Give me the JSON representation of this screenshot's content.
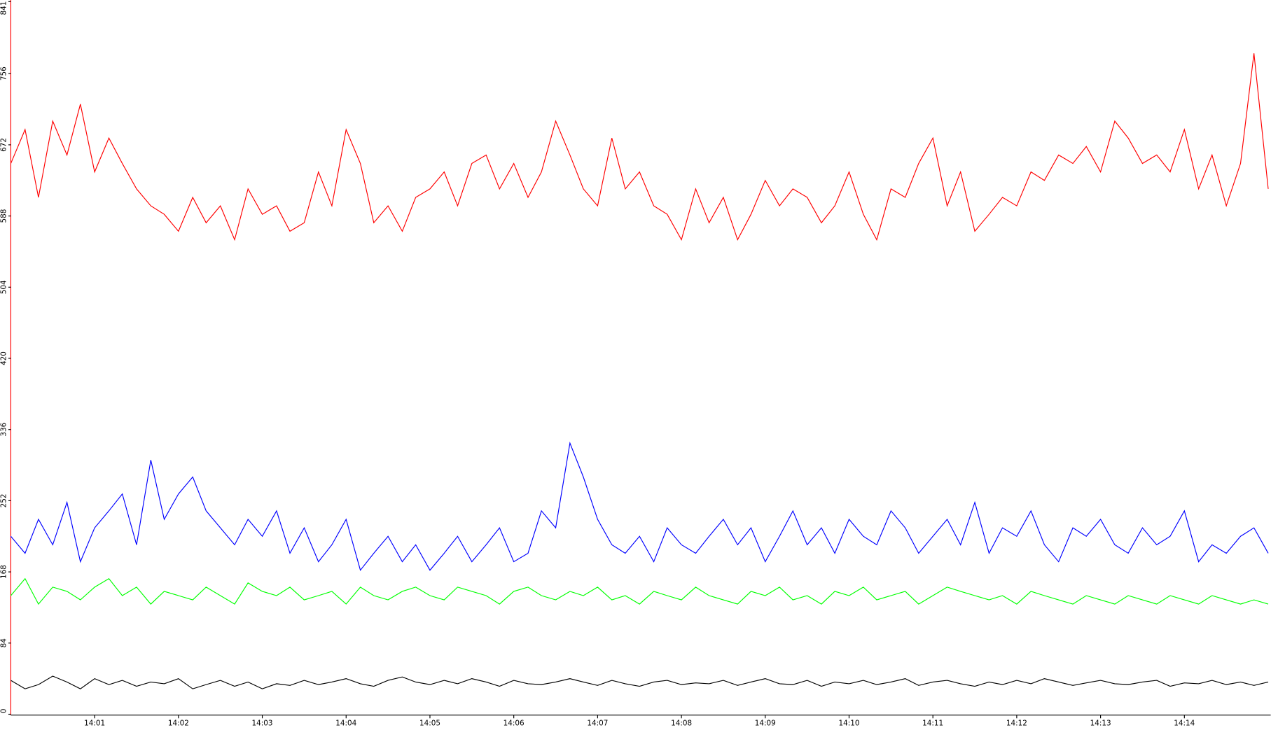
{
  "chart_data": {
    "type": "line",
    "x": [
      0,
      0.17,
      0.33,
      0.5,
      0.67,
      0.83,
      1,
      1.17,
      1.33,
      1.5,
      1.67,
      1.83,
      2,
      2.17,
      2.33,
      2.5,
      2.67,
      2.83,
      3,
      3.17,
      3.33,
      3.5,
      3.67,
      3.83,
      4,
      4.17,
      4.33,
      4.5,
      4.67,
      4.83,
      5,
      5.17,
      5.33,
      5.5,
      5.67,
      5.83,
      6,
      6.17,
      6.33,
      6.5,
      6.67,
      6.83,
      7,
      7.17,
      7.33,
      7.5,
      7.67,
      7.83,
      8,
      8.17,
      8.33,
      8.5,
      8.67,
      8.83,
      9,
      9.17,
      9.33,
      9.5,
      9.67,
      9.83,
      10,
      10.17,
      10.33,
      10.5,
      10.67,
      10.83,
      11,
      11.17,
      11.33,
      11.5,
      11.67,
      11.83,
      12,
      12.17,
      12.33,
      12.5,
      12.67,
      12.83,
      13,
      13.17,
      13.33,
      13.5,
      13.67,
      13.83,
      14,
      14.17,
      14.33,
      14.5,
      14.67,
      14.83,
      15
    ],
    "series": [
      {
        "color": "#ff0000",
        "values": [
          650,
          690,
          610,
          700,
          660,
          720,
          640,
          680,
          650,
          620,
          600,
          590,
          570,
          610,
          580,
          600,
          560,
          620,
          590,
          600,
          570,
          580,
          640,
          600,
          690,
          650,
          580,
          600,
          570,
          610,
          620,
          640,
          600,
          650,
          660,
          620,
          650,
          610,
          640,
          700,
          660,
          620,
          600,
          680,
          620,
          640,
          600,
          590,
          560,
          620,
          580,
          610,
          560,
          590,
          630,
          600,
          620,
          610,
          580,
          600,
          640,
          590,
          560,
          620,
          610,
          650,
          680,
          600,
          640,
          570,
          590,
          610,
          600,
          640,
          630,
          660,
          650,
          670,
          640,
          700,
          680,
          650,
          660,
          640,
          690,
          620,
          660,
          600,
          650,
          780,
          620
        ]
      },
      {
        "color": "#0000ff",
        "values": [
          210,
          190,
          230,
          200,
          250,
          180,
          220,
          240,
          260,
          200,
          300,
          230,
          260,
          280,
          240,
          220,
          200,
          230,
          210,
          240,
          190,
          220,
          180,
          200,
          230,
          170,
          190,
          210,
          180,
          200,
          170,
          190,
          210,
          180,
          200,
          220,
          180,
          190,
          240,
          220,
          320,
          280,
          230,
          200,
          190,
          210,
          180,
          220,
          200,
          190,
          210,
          230,
          200,
          220,
          180,
          210,
          240,
          200,
          220,
          190,
          230,
          210,
          200,
          240,
          220,
          190,
          210,
          230,
          200,
          250,
          190,
          220,
          210,
          240,
          200,
          180,
          220,
          210,
          230,
          200,
          190,
          220,
          200,
          210,
          240,
          180,
          200,
          190,
          210,
          220,
          190
        ]
      },
      {
        "color": "#00ff00",
        "values": [
          140,
          160,
          130,
          150,
          145,
          135,
          150,
          160,
          140,
          150,
          130,
          145,
          140,
          135,
          150,
          140,
          130,
          155,
          145,
          140,
          150,
          135,
          140,
          145,
          130,
          150,
          140,
          135,
          145,
          150,
          140,
          135,
          150,
          145,
          140,
          130,
          145,
          150,
          140,
          135,
          145,
          140,
          150,
          135,
          140,
          130,
          145,
          140,
          135,
          150,
          140,
          135,
          130,
          145,
          140,
          150,
          135,
          140,
          130,
          145,
          140,
          150,
          135,
          140,
          145,
          130,
          140,
          150,
          145,
          140,
          135,
          140,
          130,
          145,
          140,
          135,
          130,
          140,
          135,
          130,
          140,
          135,
          130,
          140,
          135,
          130,
          140,
          135,
          130,
          135,
          130
        ]
      },
      {
        "color": "#000000",
        "values": [
          40,
          30,
          35,
          45,
          38,
          30,
          42,
          35,
          40,
          33,
          38,
          36,
          42,
          30,
          35,
          40,
          33,
          38,
          30,
          36,
          34,
          40,
          35,
          38,
          42,
          36,
          33,
          40,
          44,
          38,
          35,
          40,
          36,
          42,
          38,
          33,
          40,
          36,
          35,
          38,
          42,
          38,
          34,
          40,
          36,
          33,
          38,
          40,
          35,
          37,
          36,
          40,
          34,
          38,
          42,
          36,
          35,
          40,
          33,
          38,
          36,
          40,
          35,
          38,
          42,
          34,
          38,
          40,
          36,
          33,
          38,
          35,
          40,
          36,
          42,
          38,
          34,
          37,
          40,
          36,
          35,
          38,
          40,
          33,
          37,
          36,
          40,
          35,
          38,
          34,
          38
        ]
      }
    ],
    "xlim": [
      0,
      15.03
    ],
    "xticks": [
      {
        "value": 1,
        "label": "14:01"
      },
      {
        "value": 2,
        "label": "14:02"
      },
      {
        "value": 3,
        "label": "14:03"
      },
      {
        "value": 4,
        "label": "14:04"
      },
      {
        "value": 5,
        "label": "14:05"
      },
      {
        "value": 6,
        "label": "14:06"
      },
      {
        "value": 7,
        "label": "14:07"
      },
      {
        "value": 8,
        "label": "14:08"
      },
      {
        "value": 9,
        "label": "14:09"
      },
      {
        "value": 10,
        "label": "14:10"
      },
      {
        "value": 11,
        "label": "14:11"
      },
      {
        "value": 12,
        "label": "14:12"
      },
      {
        "value": 13,
        "label": "14:13"
      },
      {
        "value": 14,
        "label": "14:14"
      }
    ],
    "ylim": [
      0,
      841
    ],
    "yticks": [
      0,
      84,
      168,
      252,
      336,
      420,
      504,
      588,
      672,
      756,
      841
    ]
  }
}
